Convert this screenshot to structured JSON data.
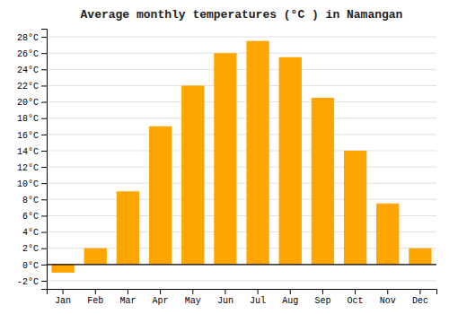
{
  "chart_data": {
    "type": "bar",
    "title": "Average monthly temperatures (°C ) in Namangan",
    "categories": [
      "Jan",
      "Feb",
      "Mar",
      "Apr",
      "May",
      "Jun",
      "Jul",
      "Aug",
      "Sep",
      "Oct",
      "Nov",
      "Dec"
    ],
    "values": [
      -1,
      2,
      9,
      17,
      22,
      26,
      27.5,
      25.5,
      20.5,
      14,
      7.5,
      2
    ],
    "color": "#FFA500",
    "ylim": [
      -3,
      29
    ],
    "yticks": [
      {
        "value": -2,
        "label": "-2°C"
      },
      {
        "value": 0,
        "label": "0°C"
      },
      {
        "value": 2,
        "label": "2°C"
      },
      {
        "value": 4,
        "label": "4°C"
      },
      {
        "value": 6,
        "label": "6°C"
      },
      {
        "value": 8,
        "label": "8°C"
      },
      {
        "value": 10,
        "label": "10°C"
      },
      {
        "value": 12,
        "label": "12°C"
      },
      {
        "value": 14,
        "label": "14°C"
      },
      {
        "value": 16,
        "label": "16°C"
      },
      {
        "value": 18,
        "label": "18°C"
      },
      {
        "value": 20,
        "label": "20°C"
      },
      {
        "value": 22,
        "label": "22°C"
      },
      {
        "value": 24,
        "label": "24°C"
      },
      {
        "value": 26,
        "label": "26°C"
      },
      {
        "value": 28,
        "label": "28°C"
      }
    ],
    "grid": true
  }
}
